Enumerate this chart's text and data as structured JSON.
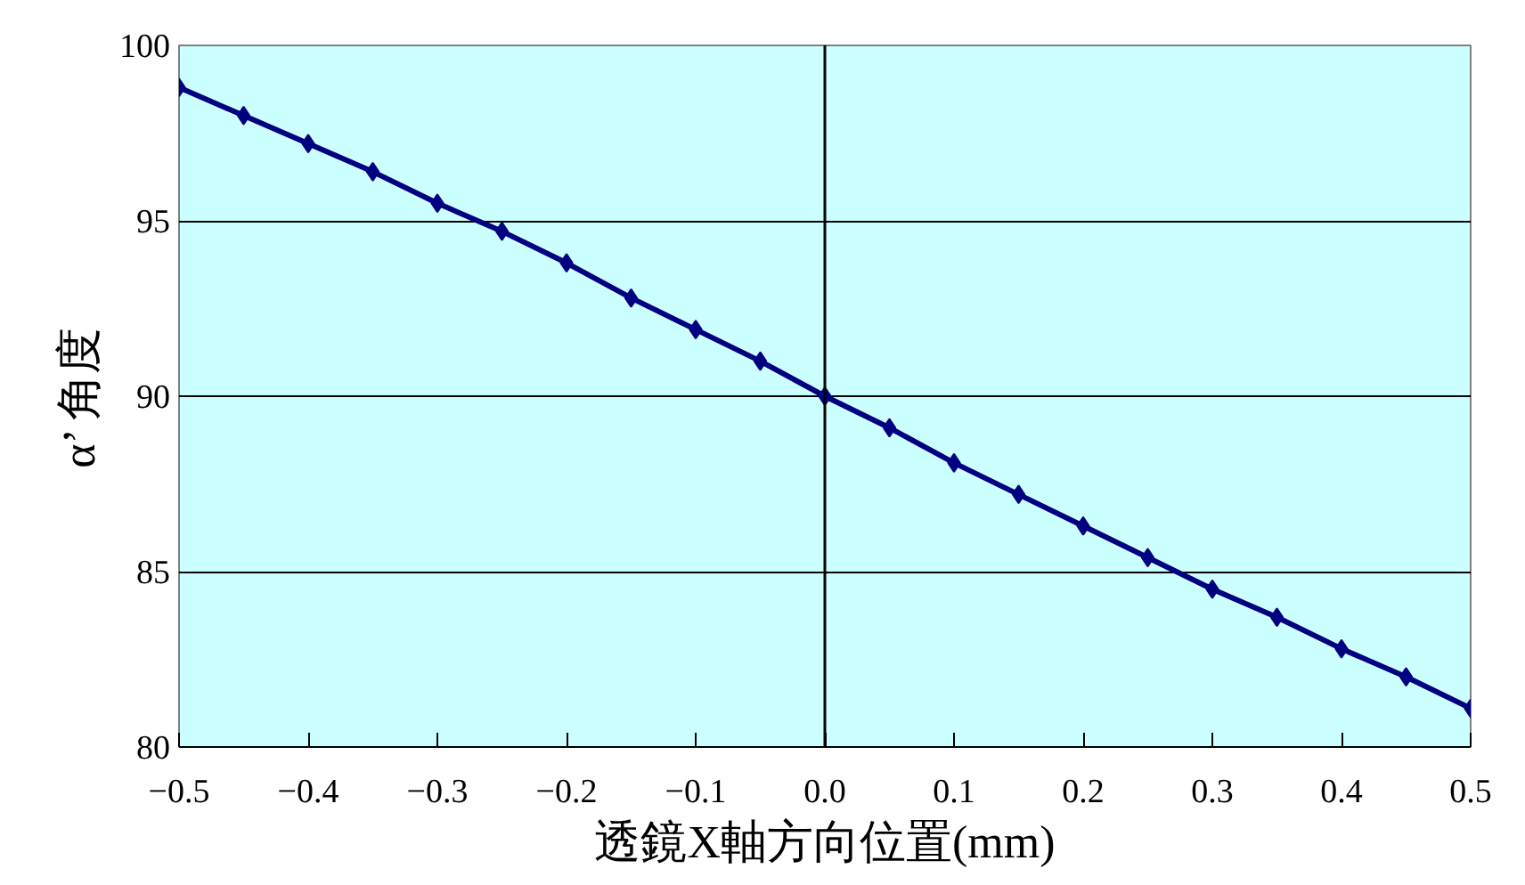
{
  "chart_data": {
    "type": "line",
    "xlabel": "透鏡X軸方向位置(mm)",
    "ylabel": "α’ 角度",
    "x": [
      -0.5,
      -0.45,
      -0.4,
      -0.35,
      -0.3,
      -0.25,
      -0.2,
      -0.15,
      -0.1,
      -0.05,
      0,
      0.05,
      0.1,
      0.15,
      0.2,
      0.25,
      0.3,
      0.35,
      0.4,
      0.45,
      0.5
    ],
    "series": [
      {
        "color": "#000080",
        "values": [
          98.8,
          98.0,
          97.2,
          96.4,
          95.5,
          94.7,
          93.8,
          92.8,
          91.9,
          91.0,
          90.0,
          89.1,
          88.1,
          87.2,
          86.3,
          85.4,
          84.5,
          83.7,
          82.8,
          82.0,
          81.1
        ]
      }
    ],
    "xlim": [
      -0.5,
      0.5
    ],
    "ylim": [
      80,
      100
    ],
    "xticks": [
      -0.5,
      -0.4,
      -0.3,
      -0.2,
      -0.1,
      {
        "value": 0,
        "label": "0.0"
      },
      0.1,
      0.2,
      0.3,
      0.4,
      0.5
    ],
    "yticks": [
      80,
      85,
      90,
      95,
      100
    ],
    "ref_lines": [
      {
        "axis": "x",
        "value": 0,
        "color": "#000000"
      }
    ],
    "grid": "y",
    "marker": "diamond",
    "line_style": "solid"
  }
}
